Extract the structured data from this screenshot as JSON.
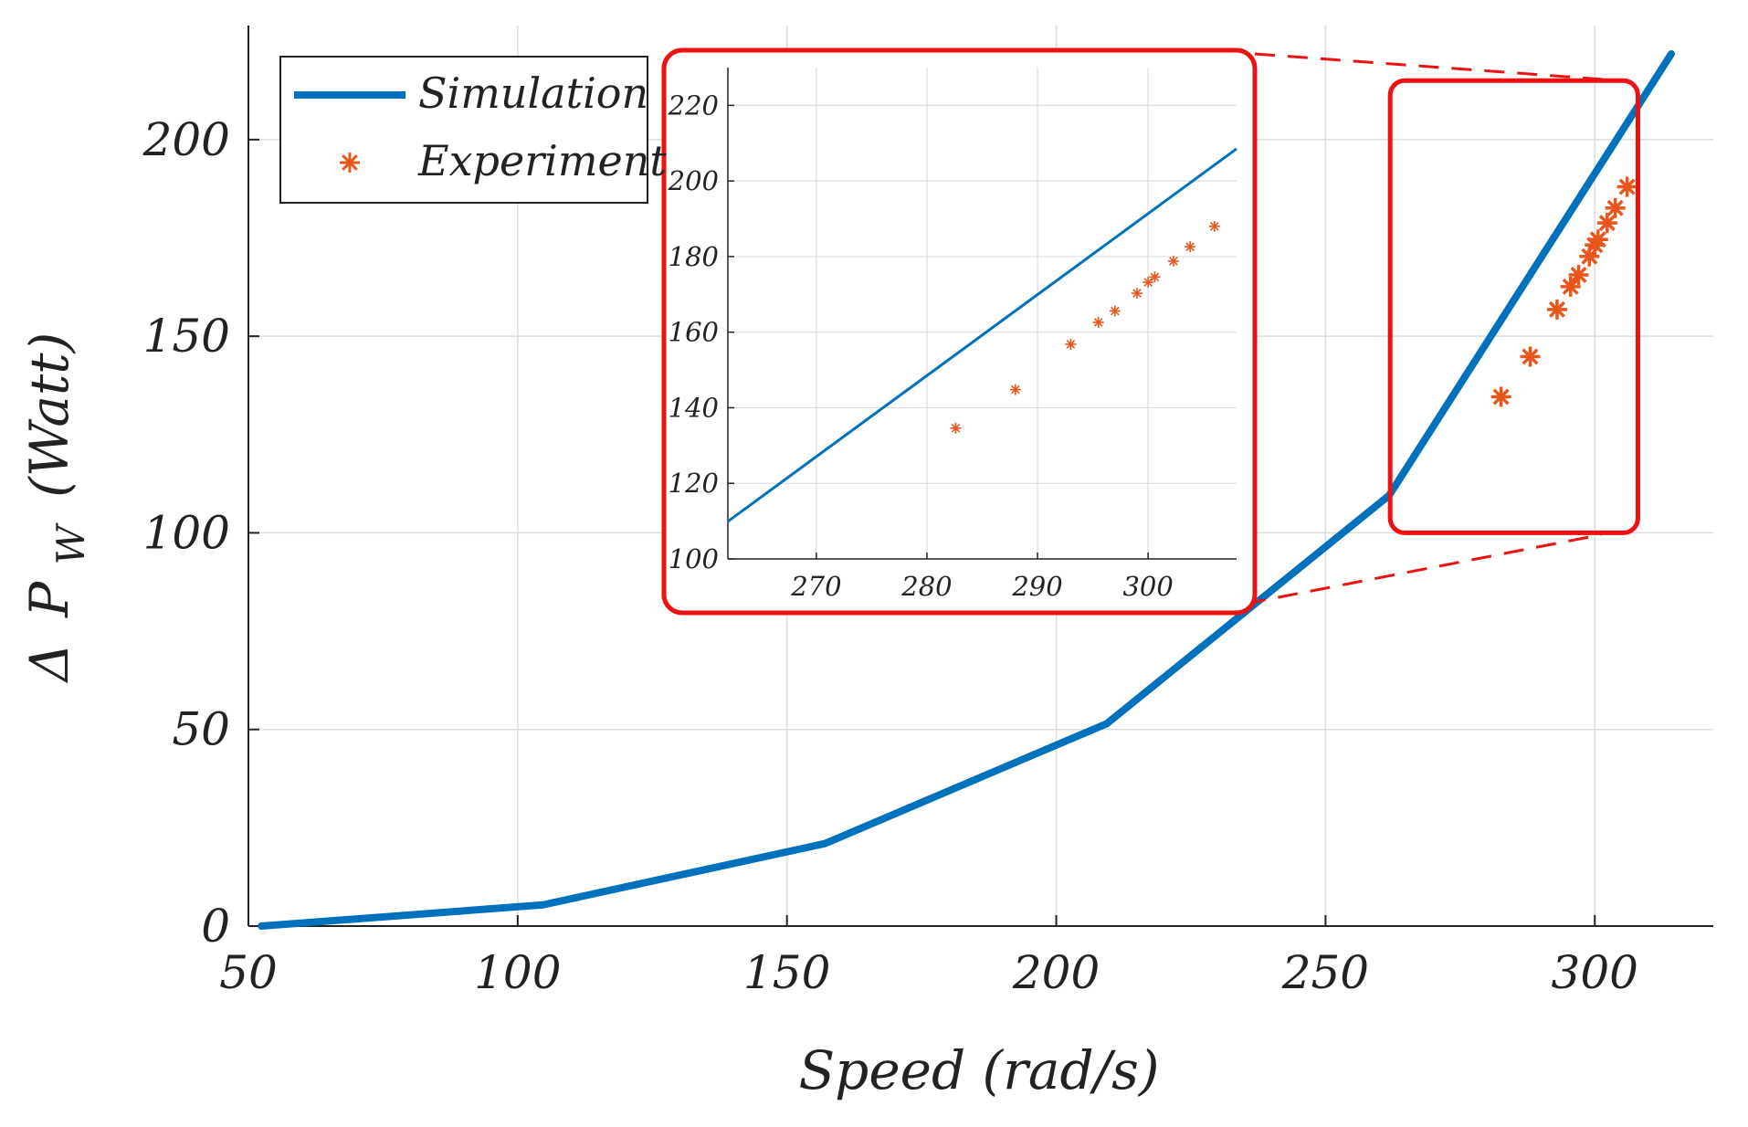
{
  "chart_data": {
    "type": "line",
    "title": "",
    "xlabel": "Speed (rad/s)",
    "ylabel": "Δ P_W (Watt)",
    "ylabel_parts": {
      "delta": "Δ",
      "symbol": "P",
      "subscript": "W",
      "unit": "(Watt)"
    },
    "xlim": [
      50,
      322
    ],
    "ylim": [
      0,
      229
    ],
    "xticks": [
      50,
      100,
      150,
      200,
      250,
      300
    ],
    "yticks": [
      0,
      50,
      100,
      150,
      200
    ],
    "grid": true,
    "legend": {
      "location": "top-left",
      "entries": [
        "Simulation",
        "Experiment"
      ]
    },
    "series": [
      {
        "name": "Simulation",
        "style": "line",
        "color": "#0072BD",
        "x": [
          52.4,
          104.7,
          157.1,
          209.4,
          261.8,
          314.2
        ],
        "y": [
          0,
          5.4,
          21,
          51.5,
          109.5,
          221.8
        ]
      },
      {
        "name": "Experiment",
        "style": "asterisk",
        "color": "#E8561C",
        "x": [
          282.6,
          288,
          293,
          295.5,
          297,
          299,
          300,
          300.6,
          302.3,
          303.8,
          306
        ],
        "y": [
          134.6,
          144.8,
          156.8,
          162.6,
          165.6,
          170.3,
          173.2,
          174.6,
          178.8,
          182.6,
          188
        ]
      }
    ],
    "inset": {
      "xlim": [
        262,
        308
      ],
      "ylim": [
        100,
        230
      ],
      "xticks": [
        270,
        280,
        290,
        300
      ],
      "yticks": [
        100,
        120,
        140,
        160,
        180,
        200,
        220
      ],
      "zoom_region": {
        "xlim": [
          262,
          308
        ],
        "ylim": [
          100,
          215
        ]
      }
    }
  },
  "colors": {
    "simulation": "#0072BD",
    "experiment": "#E8561C",
    "zoom_box": "#EE1111",
    "grid": "#DDDDDD",
    "axis": "#222222"
  }
}
